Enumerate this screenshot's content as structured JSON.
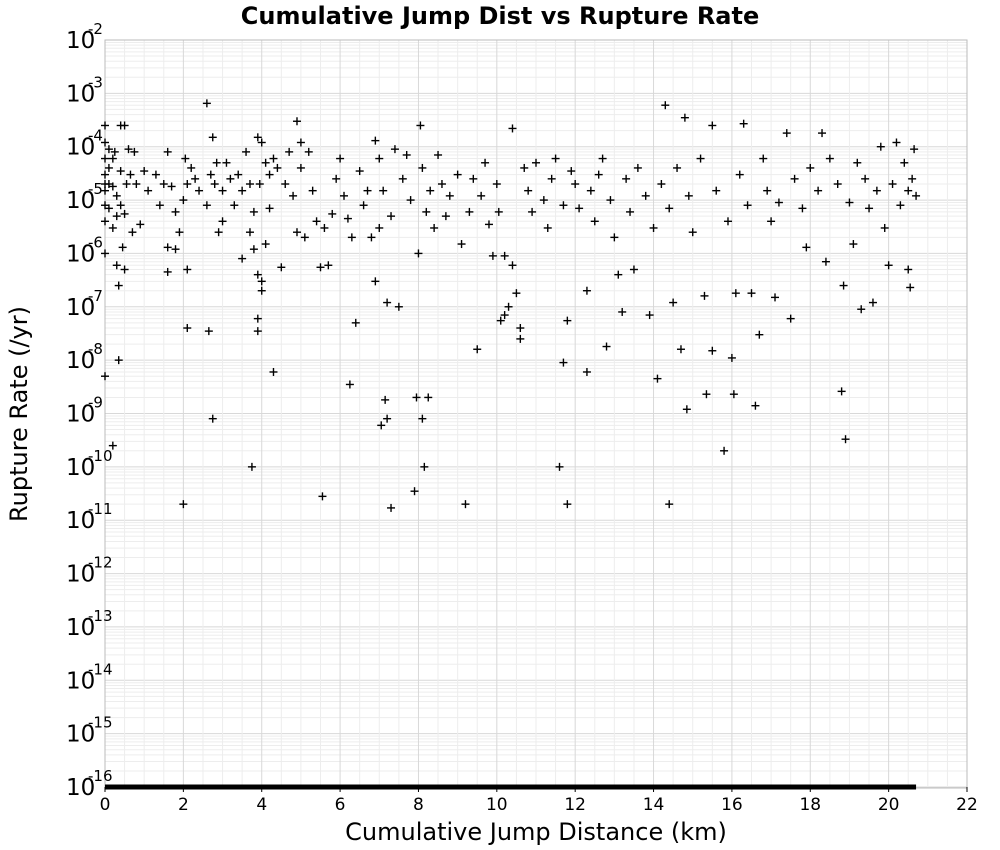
{
  "chart_data": {
    "type": "scatter",
    "title": "Cumulative Jump Dist vs Rupture Rate",
    "xlabel": "Cumulative Jump Distance (km)",
    "ylabel": "Rupture Rate (/yr)",
    "xlim": [
      0,
      22
    ],
    "ylim": [
      1e-16,
      0.01
    ],
    "yscale": "log",
    "grid": true,
    "marker": "plus",
    "xticks": [
      "0",
      "2",
      "4",
      "6",
      "8",
      "10",
      "12",
      "14",
      "16",
      "18",
      "20",
      "22"
    ],
    "yticks": [
      {
        "base": "10",
        "exp": "-2"
      },
      {
        "base": "10",
        "exp": "-3"
      },
      {
        "base": "10",
        "exp": "-4"
      },
      {
        "base": "10",
        "exp": "-5"
      },
      {
        "base": "10",
        "exp": "-6"
      },
      {
        "base": "10",
        "exp": "-7"
      },
      {
        "base": "10",
        "exp": "-8"
      },
      {
        "base": "10",
        "exp": "-9"
      },
      {
        "base": "10",
        "exp": "-10"
      },
      {
        "base": "10",
        "exp": "-11"
      },
      {
        "base": "10",
        "exp": "-12"
      },
      {
        "base": "10",
        "exp": "-13"
      },
      {
        "base": "10",
        "exp": "-14"
      },
      {
        "base": "10",
        "exp": "-15"
      },
      {
        "base": "10",
        "exp": "-16"
      }
    ],
    "points": [
      [
        0.0,
        0.00012
      ],
      [
        0.0,
        6e-05
      ],
      [
        0.0,
        3e-05
      ],
      [
        0.0,
        1.5e-05
      ],
      [
        0.0,
        8e-06
      ],
      [
        0.0,
        4e-06
      ],
      [
        0.0,
        1e-06
      ],
      [
        0.0,
        5e-09
      ],
      [
        0.0,
        0.00025
      ],
      [
        0.0,
        2e-05
      ],
      [
        0.1,
        9e-05
      ],
      [
        0.1,
        4e-05
      ],
      [
        0.1,
        2e-05
      ],
      [
        0.1,
        7e-06
      ],
      [
        0.2,
        6e-05
      ],
      [
        0.2,
        1.8e-05
      ],
      [
        0.2,
        3e-06
      ],
      [
        0.2,
        2.5e-10
      ],
      [
        0.25,
        8e-05
      ],
      [
        0.3,
        1.2e-05
      ],
      [
        0.3,
        5e-06
      ],
      [
        0.3,
        6e-07
      ],
      [
        0.35,
        1e-08
      ],
      [
        0.35,
        2.5e-07
      ],
      [
        0.4,
        0.00025
      ],
      [
        0.4,
        3.5e-05
      ],
      [
        0.4,
        8e-06
      ],
      [
        0.45,
        1.3e-06
      ],
      [
        0.5,
        0.00025
      ],
      [
        0.5,
        5.5e-06
      ],
      [
        0.5,
        5e-07
      ],
      [
        0.55,
        2e-05
      ],
      [
        0.6,
        9e-05
      ],
      [
        0.65,
        3e-05
      ],
      [
        0.7,
        2.5e-06
      ],
      [
        0.75,
        8e-05
      ],
      [
        0.8,
        2e-05
      ],
      [
        0.9,
        3.5e-06
      ],
      [
        1.0,
        3.5e-05
      ],
      [
        1.1,
        1.5e-05
      ],
      [
        1.3,
        3e-05
      ],
      [
        1.4,
        8e-06
      ],
      [
        1.5,
        2e-05
      ],
      [
        1.6,
        8e-05
      ],
      [
        1.6,
        1.3e-06
      ],
      [
        1.6,
        4.5e-07
      ],
      [
        1.7,
        1.8e-05
      ],
      [
        1.8,
        6e-06
      ],
      [
        1.8,
        1.2e-06
      ],
      [
        1.9,
        2.5e-06
      ],
      [
        2.0,
        1e-05
      ],
      [
        2.0,
        2e-11
      ],
      [
        2.05,
        6e-05
      ],
      [
        2.1,
        2e-05
      ],
      [
        2.1,
        5e-07
      ],
      [
        2.1,
        4e-08
      ],
      [
        2.2,
        4e-05
      ],
      [
        2.3,
        2.5e-05
      ],
      [
        2.4,
        1.5e-05
      ],
      [
        2.6,
        0.00065
      ],
      [
        2.6,
        8e-06
      ],
      [
        2.65,
        3.5e-08
      ],
      [
        2.7,
        3e-05
      ],
      [
        2.75,
        0.00015
      ],
      [
        2.8,
        2e-05
      ],
      [
        2.75,
        8e-10
      ],
      [
        2.85,
        5e-05
      ],
      [
        2.9,
        2.5e-06
      ],
      [
        3.0,
        1.5e-05
      ],
      [
        3.0,
        4e-06
      ],
      [
        3.1,
        5e-05
      ],
      [
        3.2,
        2.5e-05
      ],
      [
        3.3,
        8e-06
      ],
      [
        3.4,
        3e-05
      ],
      [
        3.5,
        1.5e-05
      ],
      [
        3.5,
        8e-07
      ],
      [
        3.6,
        8e-05
      ],
      [
        3.7,
        2.5e-06
      ],
      [
        3.7,
        2e-05
      ],
      [
        3.75,
        1e-10
      ],
      [
        3.8,
        6e-06
      ],
      [
        3.8,
        1.2e-06
      ],
      [
        3.9,
        0.00015
      ],
      [
        3.9,
        4e-07
      ],
      [
        3.9,
        6e-08
      ],
      [
        3.9,
        3.5e-08
      ],
      [
        3.95,
        2e-05
      ],
      [
        4.0,
        0.00012
      ],
      [
        4.0,
        3e-07
      ],
      [
        4.0,
        2e-07
      ],
      [
        4.1,
        5e-05
      ],
      [
        4.1,
        1.5e-06
      ],
      [
        4.2,
        3e-05
      ],
      [
        4.2,
        7e-06
      ],
      [
        4.3,
        6e-09
      ],
      [
        4.3,
        6e-05
      ],
      [
        4.4,
        4e-05
      ],
      [
        4.5,
        5.5e-07
      ],
      [
        4.6,
        2e-05
      ],
      [
        4.7,
        8e-05
      ],
      [
        4.8,
        1.2e-05
      ],
      [
        4.9,
        0.0003
      ],
      [
        4.9,
        2.5e-06
      ],
      [
        5.0,
        0.00012
      ],
      [
        5.0,
        4e-05
      ],
      [
        5.1,
        2e-06
      ],
      [
        5.2,
        8e-05
      ],
      [
        5.3,
        1.5e-05
      ],
      [
        5.4,
        4e-06
      ],
      [
        5.5,
        5.5e-07
      ],
      [
        5.55,
        2.8e-11
      ],
      [
        5.6,
        3e-06
      ],
      [
        5.7,
        6e-07
      ],
      [
        5.8,
        5.5e-06
      ],
      [
        5.9,
        2.5e-05
      ],
      [
        6.0,
        6e-05
      ],
      [
        6.1,
        1.2e-05
      ],
      [
        6.2,
        4.5e-06
      ],
      [
        6.25,
        3.5e-09
      ],
      [
        6.3,
        2e-06
      ],
      [
        6.4,
        5e-08
      ],
      [
        6.5,
        3.5e-05
      ],
      [
        6.6,
        8e-06
      ],
      [
        6.7,
        1.5e-05
      ],
      [
        6.8,
        2e-06
      ],
      [
        6.9,
        0.00013
      ],
      [
        6.9,
        3e-07
      ],
      [
        7.0,
        6e-05
      ],
      [
        7.0,
        3e-06
      ],
      [
        7.05,
        6e-10
      ],
      [
        7.1,
        1.5e-05
      ],
      [
        7.15,
        1.8e-09
      ],
      [
        7.2,
        8e-10
      ],
      [
        7.2,
        1.2e-07
      ],
      [
        7.3,
        5e-06
      ],
      [
        7.3,
        1.7e-11
      ],
      [
        7.4,
        9e-05
      ],
      [
        7.5,
        1e-07
      ],
      [
        7.6,
        2.5e-05
      ],
      [
        7.7,
        7e-05
      ],
      [
        7.8,
        1e-05
      ],
      [
        7.9,
        3.5e-11
      ],
      [
        7.95,
        2e-09
      ],
      [
        8.0,
        1e-06
      ],
      [
        8.05,
        0.00025
      ],
      [
        8.1,
        4e-05
      ],
      [
        8.1,
        8e-10
      ],
      [
        8.15,
        1e-10
      ],
      [
        8.2,
        6e-06
      ],
      [
        8.25,
        2e-09
      ],
      [
        8.3,
        1.5e-05
      ],
      [
        8.4,
        3e-06
      ],
      [
        8.5,
        7e-05
      ],
      [
        8.6,
        2e-05
      ],
      [
        8.7,
        5e-06
      ],
      [
        8.8,
        1.2e-05
      ],
      [
        9.0,
        3e-05
      ],
      [
        9.1,
        1.5e-06
      ],
      [
        9.2,
        2e-11
      ],
      [
        9.3,
        6e-06
      ],
      [
        9.4,
        2.5e-05
      ],
      [
        9.5,
        1.6e-08
      ],
      [
        9.6,
        1.2e-05
      ],
      [
        9.7,
        5e-05
      ],
      [
        9.8,
        3.5e-06
      ],
      [
        9.9,
        9e-07
      ],
      [
        10.0,
        2e-05
      ],
      [
        10.05,
        6e-06
      ],
      [
        10.1,
        5.5e-08
      ],
      [
        10.2,
        9e-07
      ],
      [
        10.2,
        7e-08
      ],
      [
        10.3,
        1e-07
      ],
      [
        10.4,
        0.00022
      ],
      [
        10.4,
        6e-07
      ],
      [
        10.5,
        1.8e-07
      ],
      [
        10.6,
        4e-08
      ],
      [
        10.6,
        2.5e-08
      ],
      [
        10.7,
        4e-05
      ],
      [
        10.8,
        1.5e-05
      ],
      [
        10.9,
        6e-06
      ],
      [
        11.0,
        5e-05
      ],
      [
        11.2,
        1e-05
      ],
      [
        11.3,
        3e-06
      ],
      [
        11.4,
        2.5e-05
      ],
      [
        11.5,
        6e-05
      ],
      [
        11.6,
        1e-10
      ],
      [
        11.7,
        9e-09
      ],
      [
        11.7,
        8e-06
      ],
      [
        11.8,
        2e-11
      ],
      [
        11.8,
        5.5e-08
      ],
      [
        11.9,
        3.5e-05
      ],
      [
        12.0,
        2e-05
      ],
      [
        12.1,
        7e-06
      ],
      [
        12.3,
        6e-09
      ],
      [
        12.3,
        2e-07
      ],
      [
        12.4,
        1.5e-05
      ],
      [
        12.5,
        4e-06
      ],
      [
        12.6,
        3e-05
      ],
      [
        12.7,
        6e-05
      ],
      [
        12.8,
        1.8e-08
      ],
      [
        12.9,
        1e-05
      ],
      [
        13.0,
        2e-06
      ],
      [
        13.1,
        4e-07
      ],
      [
        13.2,
        8e-08
      ],
      [
        13.3,
        2.5e-05
      ],
      [
        13.4,
        6e-06
      ],
      [
        13.5,
        5e-07
      ],
      [
        13.6,
        4e-05
      ],
      [
        13.8,
        1.2e-05
      ],
      [
        13.9,
        7e-08
      ],
      [
        14.0,
        3e-06
      ],
      [
        14.1,
        4.5e-09
      ],
      [
        14.2,
        2e-05
      ],
      [
        14.3,
        0.0006
      ],
      [
        14.4,
        2e-11
      ],
      [
        14.4,
        7e-06
      ],
      [
        14.5,
        1.2e-07
      ],
      [
        14.6,
        4e-05
      ],
      [
        14.7,
        1.6e-08
      ],
      [
        14.8,
        0.00035
      ],
      [
        14.85,
        1.2e-09
      ],
      [
        14.9,
        1.2e-05
      ],
      [
        15.0,
        2.5e-06
      ],
      [
        15.2,
        6e-05
      ],
      [
        15.3,
        1.6e-07
      ],
      [
        15.35,
        2.3e-09
      ],
      [
        15.5,
        0.00025
      ],
      [
        15.5,
        1.5e-08
      ],
      [
        15.6,
        1.5e-05
      ],
      [
        15.8,
        2e-10
      ],
      [
        15.9,
        4e-06
      ],
      [
        16.0,
        1.1e-08
      ],
      [
        16.05,
        2.3e-09
      ],
      [
        16.1,
        1.8e-07
      ],
      [
        16.2,
        3e-05
      ],
      [
        16.3,
        0.00027
      ],
      [
        16.4,
        8e-06
      ],
      [
        16.5,
        1.8e-07
      ],
      [
        16.6,
        1.4e-09
      ],
      [
        16.7,
        3e-08
      ],
      [
        16.8,
        6e-05
      ],
      [
        16.9,
        1.5e-05
      ],
      [
        17.0,
        4e-06
      ],
      [
        17.1,
        1.5e-07
      ],
      [
        17.2,
        9e-06
      ],
      [
        17.4,
        0.00018
      ],
      [
        17.5,
        6e-08
      ],
      [
        17.6,
        2.5e-05
      ],
      [
        17.8,
        7e-06
      ],
      [
        17.9,
        1.3e-06
      ],
      [
        18.0,
        4e-05
      ],
      [
        18.2,
        1.5e-05
      ],
      [
        18.3,
        0.00018
      ],
      [
        18.4,
        7e-07
      ],
      [
        18.5,
        6e-05
      ],
      [
        18.7,
        2e-05
      ],
      [
        18.8,
        2.6e-09
      ],
      [
        18.85,
        2.5e-07
      ],
      [
        18.9,
        3.3e-10
      ],
      [
        19.0,
        9e-06
      ],
      [
        19.1,
        1.5e-06
      ],
      [
        19.2,
        5e-05
      ],
      [
        19.3,
        9e-08
      ],
      [
        19.4,
        2.5e-05
      ],
      [
        19.5,
        7e-06
      ],
      [
        19.6,
        1.2e-07
      ],
      [
        19.7,
        1.5e-05
      ],
      [
        19.8,
        0.0001
      ],
      [
        19.9,
        3e-06
      ],
      [
        20.0,
        6e-07
      ],
      [
        20.1,
        2e-05
      ],
      [
        20.2,
        0.00012
      ],
      [
        20.3,
        8e-06
      ],
      [
        20.4,
        5e-05
      ],
      [
        20.5,
        1.5e-05
      ],
      [
        20.5,
        5e-07
      ],
      [
        20.55,
        2.3e-07
      ],
      [
        20.6,
        2.5e-05
      ],
      [
        20.65,
        9e-05
      ],
      [
        20.7,
        1.2e-05
      ]
    ],
    "baseline": {
      "x_start": 0,
      "x_end": 20.7,
      "y": 1e-16
    }
  }
}
